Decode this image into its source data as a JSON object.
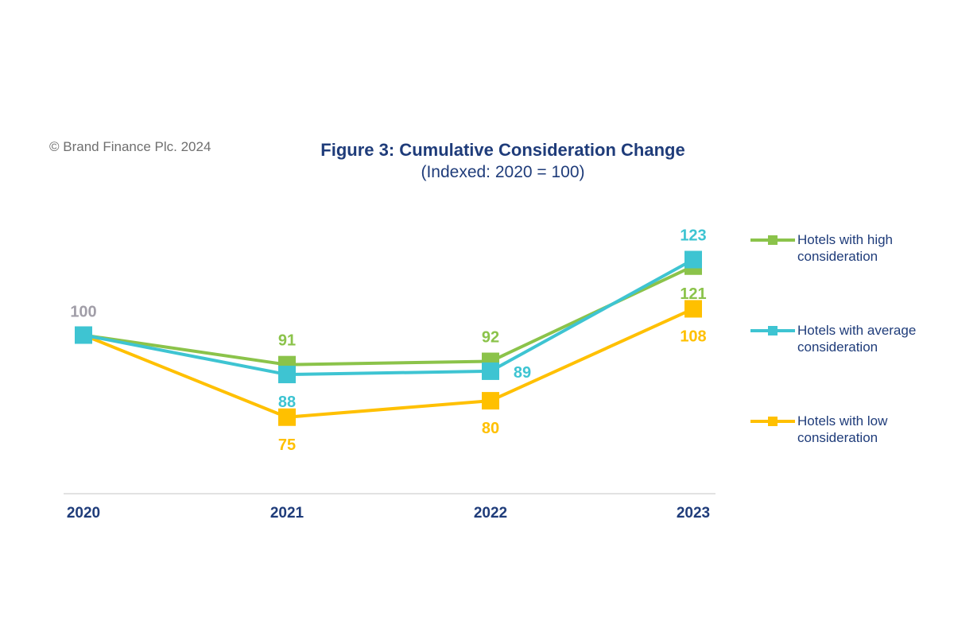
{
  "copyright": "© Brand Finance Plc. 2024",
  "chart_data": {
    "type": "line",
    "title": "Figure 3: Cumulative Consideration Change",
    "subtitle": "(Indexed: 2020 = 100)",
    "x": [
      "2020",
      "2021",
      "2022",
      "2023"
    ],
    "ylim": [
      65,
      130
    ],
    "grid": false,
    "legend_position": "right",
    "start_label": "100",
    "start_label_color": "#a19ea8",
    "axis_label_color": "#1f3c7a",
    "series": [
      {
        "name": "Hotels with high consideration",
        "legend_lines": [
          "Hotels with high",
          "consideration"
        ],
        "color": "#8bc34a",
        "values": [
          100,
          91,
          92,
          121
        ],
        "labels": [
          "",
          "91",
          "92",
          "121"
        ]
      },
      {
        "name": "Hotels with average consideration",
        "legend_lines": [
          "Hotels with average",
          "consideration"
        ],
        "color": "#3ec4d2",
        "values": [
          100,
          88,
          89,
          123
        ],
        "labels": [
          "",
          "88",
          "89",
          "123"
        ]
      },
      {
        "name": "Hotels with low consideration",
        "legend_lines": [
          "Hotels with low",
          "consideration"
        ],
        "color": "#ffc000",
        "values": [
          100,
          75,
          80,
          108
        ],
        "labels": [
          "",
          "75",
          "80",
          "108"
        ]
      }
    ]
  }
}
